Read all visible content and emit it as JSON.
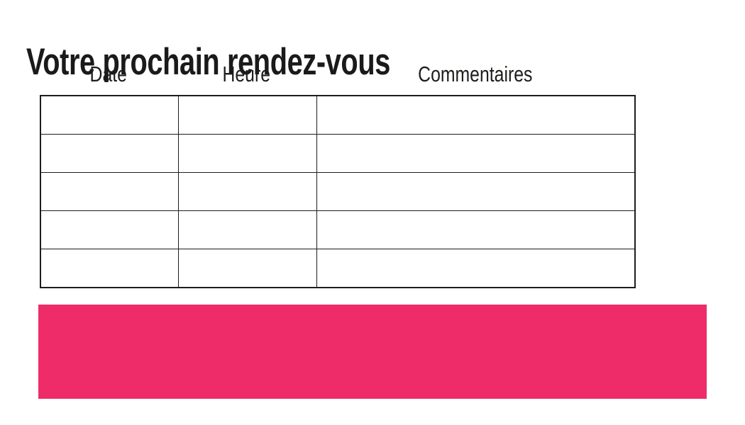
{
  "page": {
    "title": "Votre prochain rendez-vous"
  },
  "appointment_table": {
    "columns": [
      {
        "label": "Date"
      },
      {
        "label": "Heure"
      },
      {
        "label": "Commentaires"
      }
    ],
    "rows": [
      [
        "",
        "",
        ""
      ],
      [
        "",
        "",
        ""
      ],
      [
        "",
        "",
        ""
      ],
      [
        "",
        "",
        ""
      ],
      [
        "",
        "",
        ""
      ]
    ]
  },
  "colors": {
    "accent_pink": "#ee2c69",
    "table_border": "#1d1d1b",
    "title_text": "#1a1a1a"
  }
}
